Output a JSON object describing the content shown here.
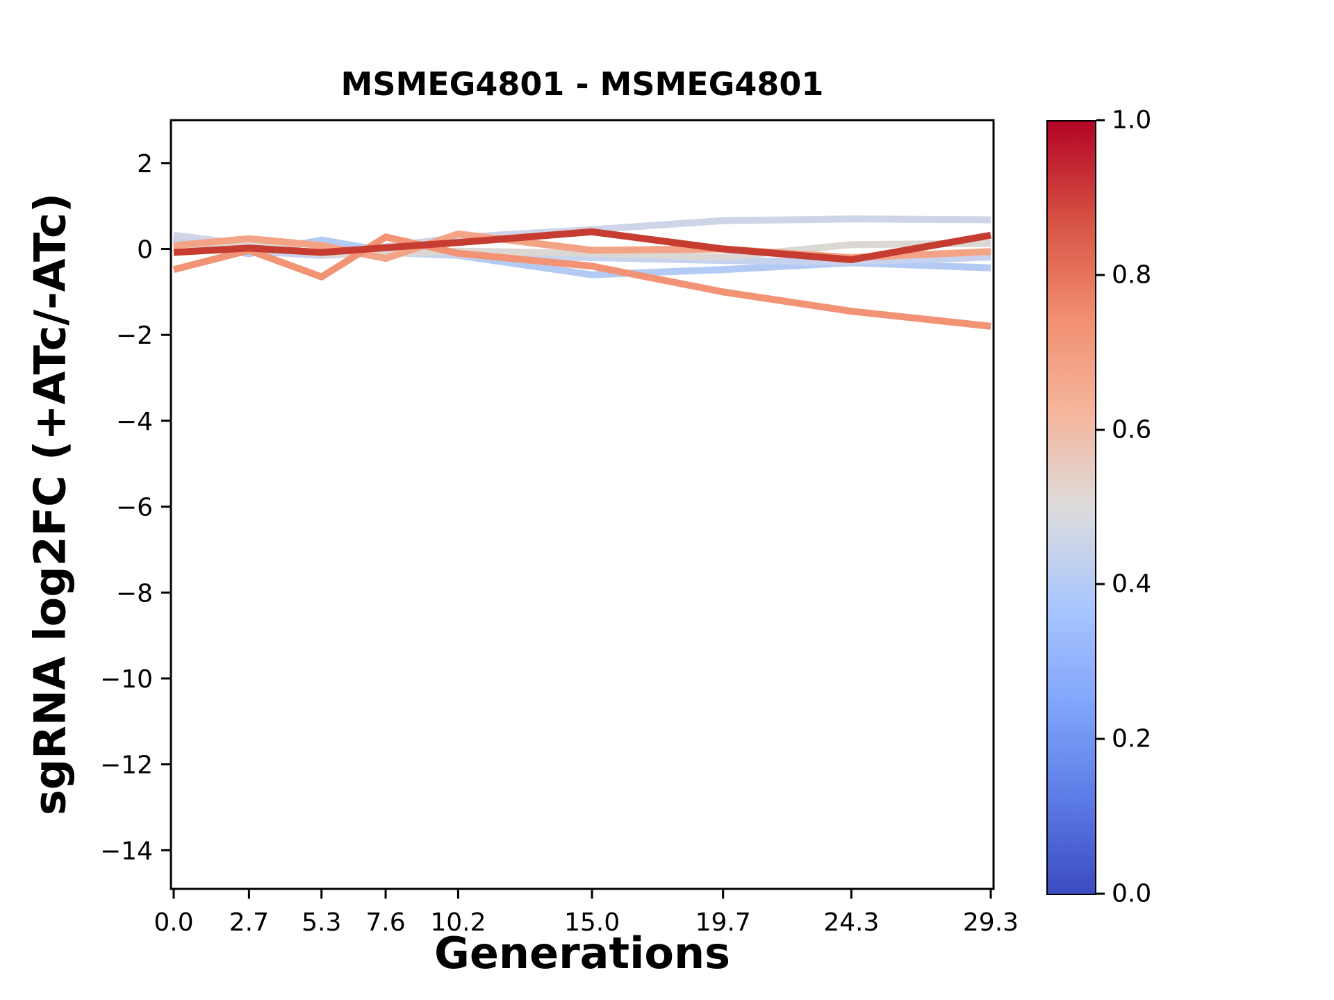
{
  "figure": {
    "title": "MSMEG4801 - MSMEG4801",
    "xlabel": "Generations",
    "ylabel": "sgRNA log2FC (+ATc/-ATc)"
  },
  "chart_data": {
    "type": "line",
    "title": "MSMEG4801 - MSMEG4801",
    "xlabel": "Generations",
    "ylabel": "sgRNA log2FC (+ATc/-ATc)",
    "x": [
      0.0,
      2.7,
      5.3,
      7.6,
      10.2,
      15.0,
      19.7,
      24.3,
      29.3
    ],
    "x_tick_labels": [
      "0.0",
      "2.7",
      "5.3",
      "7.6",
      "10.2",
      "15.0",
      "19.7",
      "24.3",
      "29.3"
    ],
    "y_ticks": [
      2,
      0,
      -2,
      -4,
      -6,
      -8,
      -10,
      -12,
      -14
    ],
    "y_tick_labels": [
      "2",
      "0",
      "−2",
      "−4",
      "−6",
      "−8",
      "−10",
      "−12",
      "−14"
    ],
    "xlim": [
      -0.1,
      29.4
    ],
    "ylim": [
      -14.9,
      3.0
    ],
    "grid": false,
    "legend": "none",
    "line_width": 10,
    "series": [
      {
        "colormap_value": 0.36,
        "color": "#b3cbf4",
        "values": [
          0.15,
          -0.11,
          0.21,
          -0.05,
          -0.15,
          -0.6,
          -0.48,
          -0.32,
          -0.44
        ]
      },
      {
        "colormap_value": 0.42,
        "color": "#c6d2ee",
        "values": [
          0.25,
          -0.05,
          -0.15,
          -0.08,
          -0.15,
          -0.2,
          -0.27,
          -0.3,
          -0.19
        ]
      },
      {
        "colormap_value": 0.44,
        "color": "#cdd5e6",
        "values": [
          0.32,
          0.1,
          -0.12,
          0.05,
          0.27,
          0.45,
          0.66,
          0.7,
          0.68
        ]
      },
      {
        "colormap_value": 0.52,
        "color": "#dbd8d4",
        "values": [
          0.1,
          0.13,
          -0.12,
          -0.1,
          -0.05,
          -0.1,
          -0.19,
          0.1,
          0.13
        ]
      },
      {
        "colormap_value": 0.66,
        "color": "#f4a486",
        "values": [
          0.08,
          0.24,
          0.08,
          -0.22,
          0.35,
          -0.03,
          0.0,
          -0.2,
          -0.06
        ]
      },
      {
        "colormap_value": 0.73,
        "color": "#f19374",
        "values": [
          -0.48,
          -0.03,
          -0.65,
          0.28,
          -0.1,
          -0.4,
          -1.0,
          -1.45,
          -1.8
        ]
      },
      {
        "colormap_value": 0.93,
        "color": "#c63c30",
        "values": [
          -0.08,
          0.02,
          -0.08,
          0.03,
          0.15,
          0.4,
          0.0,
          -0.25,
          0.32
        ]
      }
    ],
    "colorbar": {
      "orientation": "vertical",
      "colormap": "coolwarm",
      "range": [
        0.0,
        1.0
      ],
      "tick_labels": [
        "0.0",
        "0.2",
        "0.4",
        "0.6",
        "0.8",
        "1.0"
      ],
      "gradient_stops": [
        {
          "t": 0.0,
          "color": "#3b4cc0"
        },
        {
          "t": 0.125,
          "color": "#5d7ce6"
        },
        {
          "t": 0.25,
          "color": "#82a6fb"
        },
        {
          "t": 0.375,
          "color": "#aac7fd"
        },
        {
          "t": 0.5,
          "color": "#dddcdc"
        },
        {
          "t": 0.625,
          "color": "#f5b59b"
        },
        {
          "t": 0.75,
          "color": "#f18d6f"
        },
        {
          "t": 0.875,
          "color": "#d55042"
        },
        {
          "t": 1.0,
          "color": "#b40426"
        }
      ]
    }
  }
}
